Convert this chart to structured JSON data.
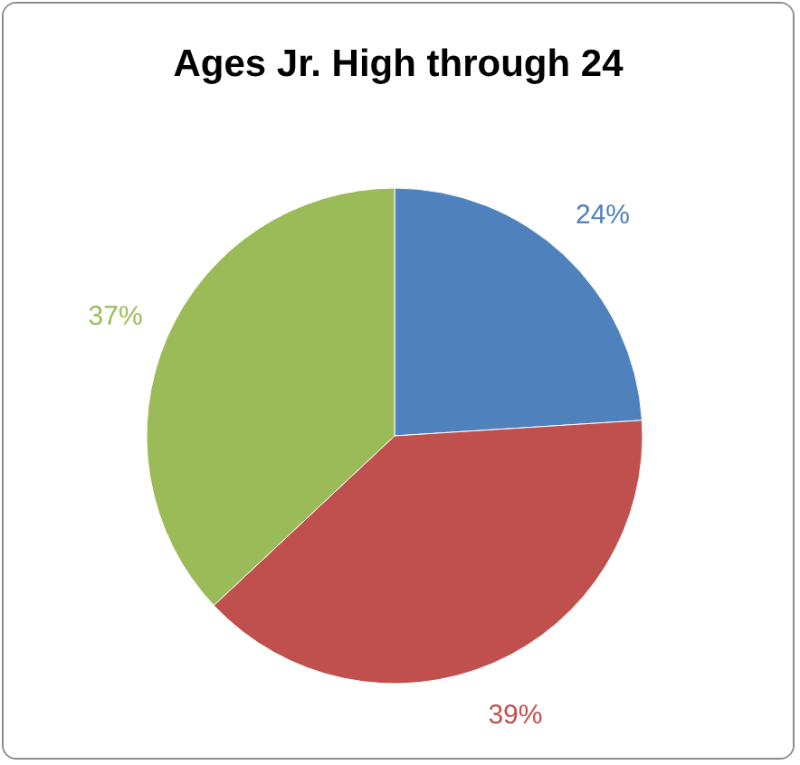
{
  "chart_data": {
    "type": "pie",
    "title": "Ages Jr. High through 24",
    "categories": [
      null,
      null,
      null
    ],
    "values": [
      24,
      39,
      37
    ],
    "colors": [
      "#4f81bd",
      "#c0504d",
      "#9bbb59"
    ],
    "value_labels": [
      "24%",
      "39%",
      "37%"
    ],
    "legend": false
  }
}
